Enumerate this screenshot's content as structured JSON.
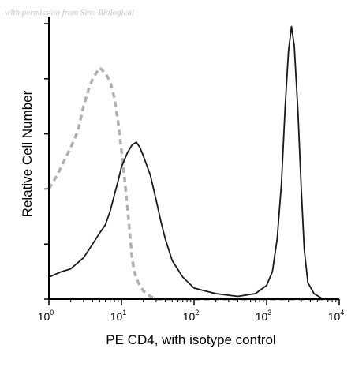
{
  "watermark": "with permission from Sino Biological",
  "chart_data": {
    "type": "line",
    "xlabel": "PE CD4, with isotype control",
    "ylabel": "Relative Cell Number",
    "xscale": "log",
    "xlim": [
      1,
      10000
    ],
    "ylim": [
      0,
      1
    ],
    "x_ticks": [
      {
        "base": "10",
        "exp": "0"
      },
      {
        "base": "10",
        "exp": "1"
      },
      {
        "base": "10",
        "exp": "2"
      },
      {
        "base": "10",
        "exp": "3"
      },
      {
        "base": "10",
        "exp": "4"
      }
    ],
    "series": [
      {
        "name": "",
        "style": "dashed",
        "color": "#b0b0b0",
        "points": [
          [
            1.0,
            0.4
          ],
          [
            1.3,
            0.45
          ],
          [
            1.6,
            0.5
          ],
          [
            2.0,
            0.55
          ],
          [
            2.5,
            0.61
          ],
          [
            3.0,
            0.7
          ],
          [
            3.5,
            0.76
          ],
          [
            4.0,
            0.8
          ],
          [
            5.0,
            0.84
          ],
          [
            6.0,
            0.82
          ],
          [
            7.0,
            0.79
          ],
          [
            8.0,
            0.73
          ],
          [
            9.0,
            0.64
          ],
          [
            10.0,
            0.54
          ],
          [
            11.0,
            0.44
          ],
          [
            12.0,
            0.34
          ],
          [
            13.0,
            0.24
          ],
          [
            14.0,
            0.15
          ],
          [
            15.0,
            0.1
          ],
          [
            17.0,
            0.06
          ],
          [
            20.0,
            0.03
          ],
          [
            25.0,
            0.01
          ],
          [
            30.0,
            0.0
          ],
          [
            10000,
            0.0
          ]
        ]
      },
      {
        "name": "",
        "style": "solid",
        "color": "#1a1a1a",
        "points": [
          [
            1.0,
            0.08
          ],
          [
            1.5,
            0.1
          ],
          [
            2.0,
            0.11
          ],
          [
            3.0,
            0.15
          ],
          [
            4.0,
            0.2
          ],
          [
            5.0,
            0.24
          ],
          [
            6.0,
            0.27
          ],
          [
            7.0,
            0.32
          ],
          [
            8.0,
            0.38
          ],
          [
            9.0,
            0.43
          ],
          [
            10.0,
            0.48
          ],
          [
            12.0,
            0.53
          ],
          [
            14.0,
            0.56
          ],
          [
            16.0,
            0.57
          ],
          [
            18.0,
            0.55
          ],
          [
            20.0,
            0.52
          ],
          [
            25.0,
            0.45
          ],
          [
            30.0,
            0.36
          ],
          [
            35.0,
            0.28
          ],
          [
            40.0,
            0.22
          ],
          [
            50.0,
            0.14
          ],
          [
            70.0,
            0.08
          ],
          [
            100.0,
            0.04
          ],
          [
            200.0,
            0.02
          ],
          [
            400.0,
            0.01
          ],
          [
            700.0,
            0.02
          ],
          [
            1000.0,
            0.05
          ],
          [
            1200.0,
            0.1
          ],
          [
            1400.0,
            0.22
          ],
          [
            1600.0,
            0.42
          ],
          [
            1800.0,
            0.7
          ],
          [
            2000.0,
            0.9
          ],
          [
            2200.0,
            0.99
          ],
          [
            2400.0,
            0.92
          ],
          [
            2700.0,
            0.68
          ],
          [
            3000.0,
            0.4
          ],
          [
            3300.0,
            0.18
          ],
          [
            3700.0,
            0.06
          ],
          [
            4500.0,
            0.02
          ],
          [
            6000.0,
            0.0
          ],
          [
            10000,
            0.0
          ]
        ]
      }
    ]
  }
}
